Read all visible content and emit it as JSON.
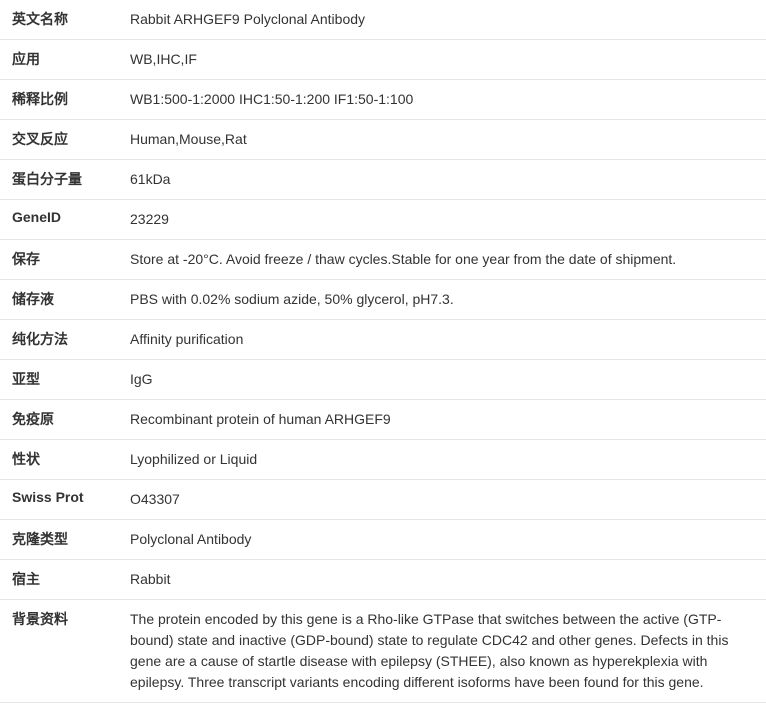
{
  "table": {
    "border_color": "#e5e5e5",
    "label_fontweight": "bold",
    "fontsize": 14,
    "text_color": "#333333",
    "background": "#ffffff",
    "label_width": 120
  },
  "rows": [
    {
      "label": "英文名称",
      "value": "Rabbit ARHGEF9 Polyclonal Antibody"
    },
    {
      "label": "应用",
      "value": "WB,IHC,IF"
    },
    {
      "label": "稀释比例",
      "value": "WB1:500-1:2000 IHC1:50-1:200 IF1:50-1:100"
    },
    {
      "label": "交叉反应",
      "value": "Human,Mouse,Rat"
    },
    {
      "label": "蛋白分子量",
      "value": "61kDa"
    },
    {
      "label": "GeneID",
      "value": "23229"
    },
    {
      "label": "保存",
      "value": "Store at -20°C. Avoid freeze / thaw cycles.Stable for one year from the date of shipment."
    },
    {
      "label": "储存液",
      "value": "PBS with 0.02% sodium azide, 50% glycerol, pH7.3."
    },
    {
      "label": "纯化方法",
      "value": "Affinity purification"
    },
    {
      "label": "亚型",
      "value": "IgG"
    },
    {
      "label": "免疫原",
      "value": "Recombinant protein of human ARHGEF9"
    },
    {
      "label": "性状",
      "value": "Lyophilized or Liquid"
    },
    {
      "label": "Swiss Prot",
      "value": "O43307"
    },
    {
      "label": "克隆类型",
      "value": "Polyclonal Antibody"
    },
    {
      "label": "宿主",
      "value": "Rabbit"
    },
    {
      "label": "背景资料",
      "value": "The protein encoded by this gene is a Rho-like GTPase that switches between the active (GTP-bound) state and inactive (GDP-bound) state to regulate CDC42 and other genes. Defects in this gene are a cause of startle disease with epilepsy (STHEE), also known as hyperekplexia with epilepsy. Three transcript variants encoding different isoforms have been found for this gene."
    }
  ]
}
